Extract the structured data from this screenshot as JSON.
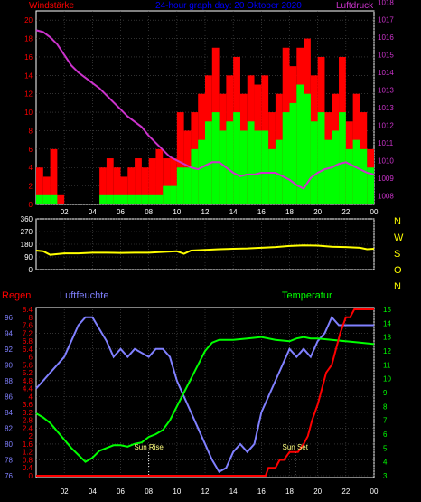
{
  "colors": {
    "red": "#ff0000",
    "green": "#00ff00",
    "magenta": "#cc33cc",
    "yellow": "#ffff00",
    "blue": "#8080ff",
    "axis": "#ffffff",
    "grid": "#505050",
    "background": "#000000"
  },
  "chart_data": [
    {
      "type": "line",
      "panel": "wind-pressure",
      "title": "24-hour graph day: 20 Oktober 2020",
      "left_label": "Windstärke",
      "right_label": "Luftdruck",
      "x_ticks": [
        "02",
        "04",
        "06",
        "08",
        "10",
        "12",
        "14",
        "16",
        "18",
        "20",
        "22",
        "00"
      ],
      "y_left_ticks": [
        "0",
        "2",
        "4",
        "6",
        "8",
        "10",
        "12",
        "14",
        "16",
        "18",
        "20"
      ],
      "y_left_lim": [
        0,
        21
      ],
      "y_right_ticks": [
        "1008",
        "1009",
        "1010",
        "1011",
        "1012",
        "1013",
        "1013",
        "1014",
        "1015",
        "1016",
        "1017",
        "1018"
      ],
      "y_right_lim": [
        1007.5,
        1018.5
      ],
      "grid": true,
      "series": [
        {
          "role": "gust",
          "color": "red",
          "x": [
            0.5,
            1,
            1.5,
            2,
            2.5,
            3,
            3.5,
            4,
            4.5,
            5,
            5.5,
            6,
            6.5,
            7,
            7.5,
            8,
            8.5,
            9,
            9.5,
            10,
            10.5,
            11,
            11.5,
            12,
            12.5,
            13,
            13.5,
            14,
            14.5,
            15,
            15.5,
            16,
            16.5,
            17,
            17.5,
            18,
            18.5,
            19,
            19.5,
            20,
            20.5,
            21,
            21.5,
            22,
            22.5,
            23,
            23.5,
            24
          ],
          "values": [
            4,
            3,
            6,
            1,
            0,
            0,
            0,
            0,
            0,
            4,
            5,
            4,
            3,
            4,
            5,
            4,
            5,
            6,
            5,
            5,
            10,
            8,
            10,
            12,
            14,
            17,
            12,
            14,
            16,
            12,
            14,
            13,
            14,
            10,
            12,
            17,
            15,
            17,
            18,
            14,
            16,
            10,
            12,
            16,
            9,
            12,
            10,
            6
          ]
        },
        {
          "role": "wind",
          "color": "green",
          "x": [
            0.5,
            1,
            1.5,
            2,
            2.5,
            3,
            3.5,
            4,
            4.5,
            5,
            5.5,
            6,
            6.5,
            7,
            7.5,
            8,
            8.5,
            9,
            9.5,
            10,
            10.5,
            11,
            11.5,
            12,
            12.5,
            13,
            13.5,
            14,
            14.5,
            15,
            15.5,
            16,
            16.5,
            17,
            17.5,
            18,
            18.5,
            19,
            19.5,
            20,
            20.5,
            21,
            21.5,
            22,
            22.5,
            23,
            23.5,
            24
          ],
          "values": [
            1,
            1,
            1,
            0,
            0,
            0,
            0,
            0,
            0,
            1,
            1,
            1,
            1,
            1,
            1,
            1,
            1,
            1,
            2,
            2,
            4,
            4,
            6,
            7,
            9,
            10,
            8,
            9,
            10,
            8,
            9,
            8,
            8,
            6,
            7,
            10,
            11,
            13,
            12,
            9,
            10,
            7,
            8,
            10,
            6,
            7,
            6,
            4
          ]
        },
        {
          "role": "pressure",
          "color": "magenta",
          "x": [
            0,
            0.5,
            1,
            1.5,
            2,
            2.5,
            3,
            3.5,
            4,
            4.5,
            5,
            5.5,
            6,
            6.5,
            7,
            7.5,
            8,
            8.5,
            9,
            9.5,
            10,
            10.5,
            11,
            11.5,
            12,
            12.5,
            13,
            13.5,
            14,
            14.5,
            15,
            15.5,
            16,
            16.5,
            17,
            17.5,
            18,
            18.5,
            19,
            19.5,
            20,
            20.5,
            21,
            21.5,
            22,
            22.5,
            23,
            23.5,
            24
          ],
          "values": [
            1017.4,
            1017.3,
            1017.0,
            1016.6,
            1016.0,
            1015.4,
            1015.0,
            1014.7,
            1014.4,
            1014.1,
            1013.7,
            1013.3,
            1012.9,
            1012.5,
            1012.2,
            1011.9,
            1011.4,
            1011.0,
            1010.6,
            1010.2,
            1010.0,
            1009.8,
            1009.6,
            1009.5,
            1009.7,
            1009.9,
            1009.9,
            1009.6,
            1009.3,
            1009.1,
            1009.2,
            1009.2,
            1009.3,
            1009.3,
            1009.3,
            1009.1,
            1008.9,
            1008.6,
            1008.4,
            1009.0,
            1009.3,
            1009.5,
            1009.6,
            1009.8,
            1009.9,
            1009.7,
            1009.5,
            1009.3,
            1009.2
          ]
        }
      ]
    },
    {
      "type": "line",
      "panel": "direction",
      "x_ticks": [
        "02",
        "04",
        "06",
        "08",
        "10",
        "12",
        "14",
        "16",
        "18",
        "20",
        "22",
        "00"
      ],
      "y_ticks": [
        "0",
        "90",
        "180",
        "270",
        "360"
      ],
      "y_lim": [
        0,
        360
      ],
      "right_labels": [
        "N",
        "W",
        "S",
        "O",
        "N"
      ],
      "grid": true,
      "series": [
        {
          "color": "yellow",
          "x": [
            0,
            0.5,
            1,
            1.5,
            2,
            3,
            4,
            5,
            6,
            7,
            8,
            9,
            10,
            10.5,
            11,
            12,
            13,
            14,
            15,
            16,
            17,
            18,
            19,
            20,
            21,
            22,
            23,
            23.5,
            24
          ],
          "values": [
            135,
            130,
            105,
            110,
            115,
            115,
            120,
            120,
            118,
            120,
            120,
            125,
            130,
            112,
            135,
            140,
            145,
            148,
            150,
            155,
            160,
            168,
            172,
            170,
            162,
            160,
            155,
            145,
            148
          ]
        }
      ]
    },
    {
      "type": "line",
      "panel": "rain-humidity-temperature",
      "labels": {
        "rain": "Regen",
        "humidity": "Luftfeuchte",
        "temperature": "Temperatur"
      },
      "annotations": {
        "sunrise": "Sun Rise",
        "sunset": "Sun Set",
        "sunrise_hour": 8.0,
        "sunset_hour": 18.4
      },
      "x_ticks": [
        "02",
        "04",
        "06",
        "08",
        "10",
        "12",
        "14",
        "16",
        "18",
        "20",
        "22",
        "00"
      ],
      "humidity_ticks": [
        "76",
        "78",
        "80",
        "82",
        "84",
        "86",
        "88",
        "90",
        "92",
        "94",
        "96"
      ],
      "humidity_lim": [
        76,
        97
      ],
      "rain_ticks": [
        "0",
        "0.4",
        "0.8",
        "1.2",
        "1.6",
        "2",
        "2.4",
        "2.8",
        "3.2",
        "3.6",
        "4",
        "4.4",
        "4.8",
        "5.2",
        "5.6",
        "6",
        "6.4",
        "6.8",
        "7.2",
        "7.6",
        "8",
        "8.4"
      ],
      "rain_lim": [
        0,
        8.4
      ],
      "temperature_ticks": [
        "3",
        "4",
        "5",
        "6",
        "7",
        "8",
        "9",
        "10",
        "11",
        "12",
        "13",
        "14",
        "15"
      ],
      "temperature_lim": [
        3,
        15
      ],
      "grid": true,
      "series": [
        {
          "role": "humidity",
          "color": "blue",
          "x": [
            0,
            0.5,
            1,
            1.5,
            2,
            2.5,
            3,
            3.5,
            4,
            5,
            5.5,
            6,
            6.5,
            7,
            8,
            8.5,
            9,
            9.5,
            10,
            10.5,
            11,
            11.5,
            12,
            12.5,
            13,
            13.5,
            14,
            14.5,
            15,
            15.5,
            16,
            16.5,
            17,
            17.5,
            18,
            18.5,
            19,
            19.5,
            20,
            20.5,
            21,
            21.5,
            22,
            22.5,
            23,
            23.5,
            24
          ],
          "values": [
            87,
            88,
            89,
            90,
            91,
            93,
            95,
            96,
            96,
            93,
            91,
            92,
            91,
            92,
            91,
            92,
            92,
            91,
            88,
            86,
            84,
            82,
            80,
            78,
            76.5,
            77,
            79,
            80,
            79,
            80,
            84,
            86,
            88,
            90,
            92,
            91,
            92,
            91,
            93,
            94,
            96,
            95,
            95,
            95,
            95,
            95,
            95
          ]
        },
        {
          "role": "temperature",
          "color": "green",
          "x": [
            0,
            0.5,
            1,
            1.5,
            2,
            2.5,
            3,
            3.5,
            4,
            4.5,
            5,
            5.5,
            6,
            6.5,
            7,
            7.5,
            8,
            8.5,
            9,
            9.5,
            10,
            10.5,
            11,
            11.5,
            12,
            12.5,
            13,
            13.5,
            14,
            15,
            16,
            17,
            18,
            18.5,
            19,
            19.5,
            20,
            21,
            22,
            23,
            24
          ],
          "values": [
            7.5,
            7.2,
            6.8,
            6.2,
            5.6,
            5.0,
            4.5,
            4.0,
            4.3,
            4.8,
            5.0,
            5.2,
            5.2,
            5.1,
            5.3,
            5.4,
            5.8,
            6.0,
            6.3,
            7.0,
            8.0,
            9.0,
            10.0,
            11.0,
            12.0,
            12.6,
            12.8,
            12.8,
            12.8,
            12.9,
            13.0,
            12.8,
            12.7,
            12.9,
            13.0,
            12.9,
            12.9,
            12.8,
            12.7,
            12.6,
            12.5
          ]
        },
        {
          "role": "rain",
          "color": "red",
          "x": [
            0,
            16.3,
            16.5,
            17,
            17.3,
            17.6,
            18,
            18.3,
            18.6,
            19,
            19.3,
            19.6,
            20,
            20.3,
            20.6,
            21,
            21.3,
            21.6,
            22,
            22.3,
            22.6,
            23,
            24
          ],
          "values": [
            0,
            0,
            0.4,
            0.4,
            0.8,
            0.8,
            1.2,
            1.2,
            1.2,
            1.6,
            2.0,
            2.8,
            3.6,
            4.4,
            5.2,
            5.6,
            6.4,
            7.2,
            8.0,
            8.0,
            8.4,
            8.4,
            8.4
          ]
        }
      ]
    }
  ]
}
